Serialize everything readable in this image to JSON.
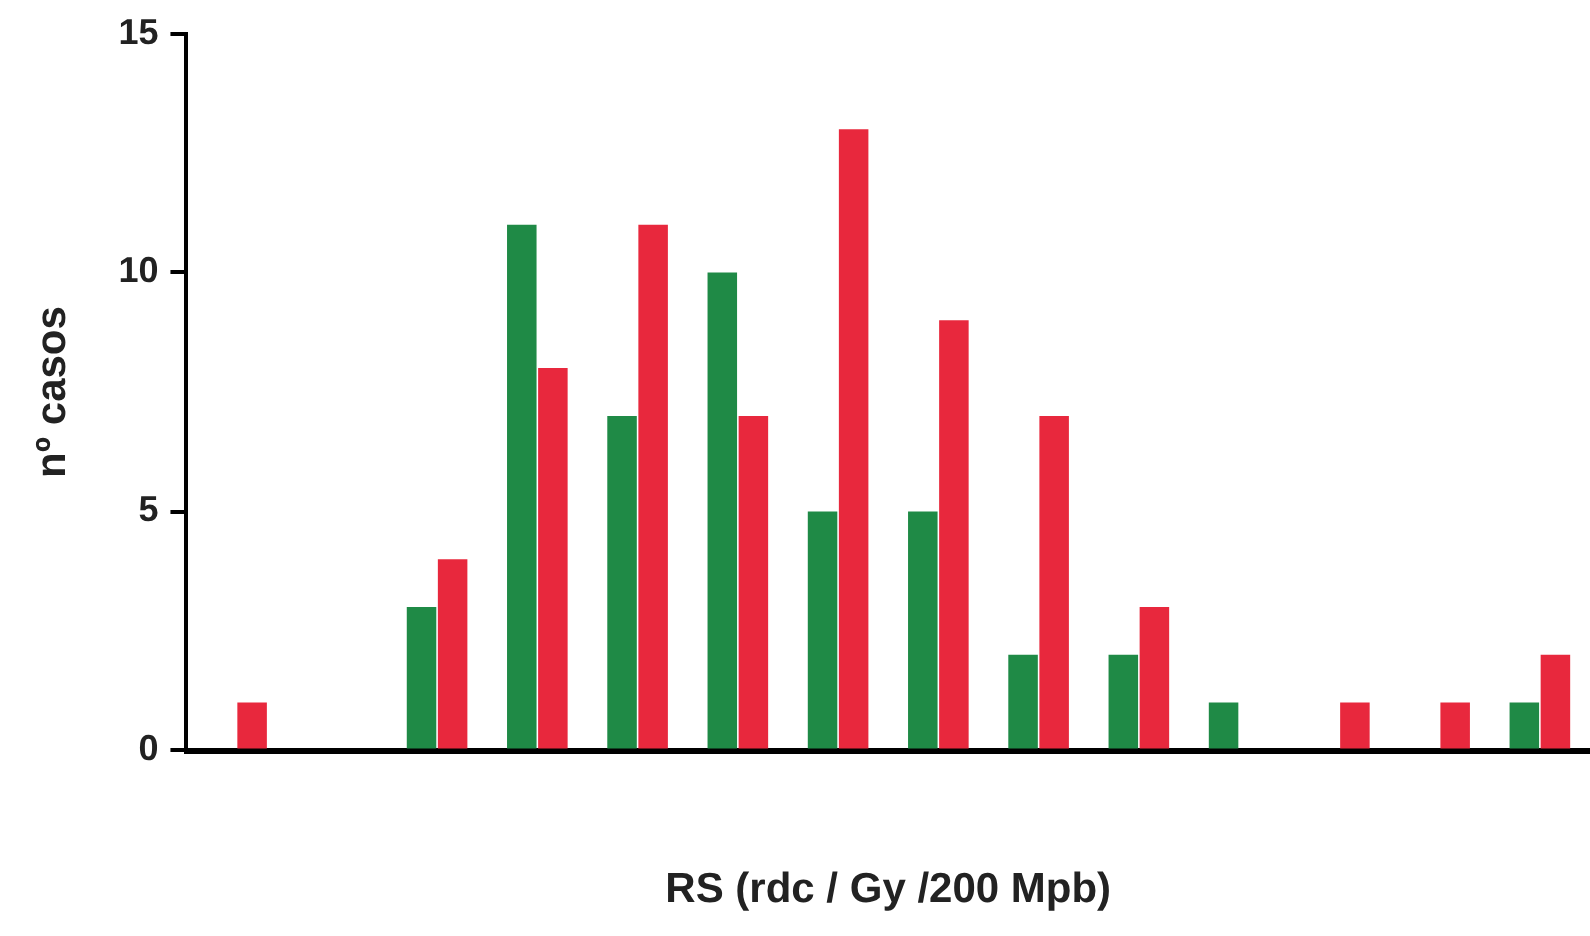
{
  "chart_data": {
    "type": "bar",
    "xlabel": "RS (rdc / Gy /200 Mpb)",
    "ylabel": "nº casos",
    "categories": [
      null,
      null,
      null,
      null,
      null,
      null,
      null,
      null,
      null,
      null,
      null,
      null,
      null,
      null
    ],
    "series": [
      {
        "color": "#1f8a46",
        "values": [
          0,
          0,
          3,
          11,
          7,
          10,
          5,
          5,
          2,
          2,
          1,
          0,
          0,
          1
        ]
      },
      {
        "color": "#e8283d",
        "values": [
          1,
          0,
          4,
          8,
          11,
          7,
          13,
          9,
          7,
          3,
          0,
          1,
          1,
          2
        ]
      }
    ],
    "ylim": [
      0,
      15
    ],
    "yticks": [
      0,
      5,
      10,
      15
    ],
    "grid": false,
    "legend": false
  }
}
